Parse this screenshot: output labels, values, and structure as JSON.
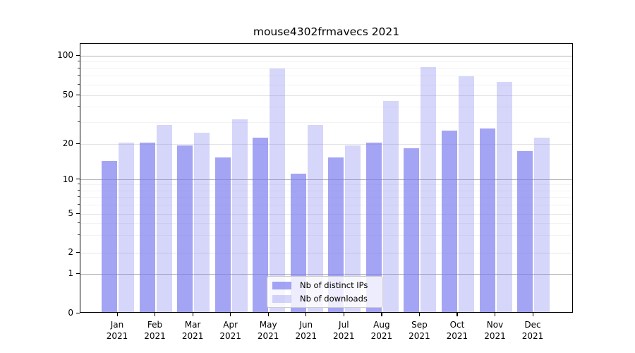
{
  "title": "mouse4302frmavecs 2021",
  "chart_data": {
    "type": "bar",
    "title": "mouse4302frmavecs 2021",
    "categories": [
      "Jan 2021",
      "Feb 2021",
      "Mar 2021",
      "Apr 2021",
      "May 2021",
      "Jun 2021",
      "Jul 2021",
      "Aug 2021",
      "Sep 2021",
      "Oct 2021",
      "Nov 2021",
      "Dec 2021"
    ],
    "series": [
      {
        "name": "Nb of distinct IPs",
        "color": "rgba(119,119,238,0.67)",
        "values": [
          14,
          20,
          19,
          15,
          22,
          11,
          15,
          20,
          18,
          25,
          26,
          17
        ]
      },
      {
        "name": "Nb of downloads",
        "color": "rgba(119,119,238,0.30)",
        "values": [
          20,
          28,
          24,
          31,
          78,
          28,
          19,
          44,
          80,
          68,
          62,
          22
        ]
      }
    ],
    "yscale": "symlog",
    "y_tick_values": [
      0,
      1,
      2,
      5,
      10,
      20,
      50,
      100
    ],
    "y_minor_tick_values": [
      3,
      4,
      6,
      7,
      8,
      9,
      30,
      40,
      60,
      70,
      80,
      90
    ],
    "ylim": [
      0,
      120
    ],
    "grid": true,
    "legend_position": "lower center inside"
  },
  "legend": {
    "entries": [
      {
        "label": "Nb of distinct IPs"
      },
      {
        "label": "Nb of downloads"
      }
    ]
  },
  "colors": {
    "bar_base": "#7777ee",
    "grid_strong": "#b2b2b2",
    "grid_major": "#e4e4e4",
    "grid_minor": "#f3f3f3",
    "spine": "#000000",
    "legend_border": "#cccccc"
  }
}
